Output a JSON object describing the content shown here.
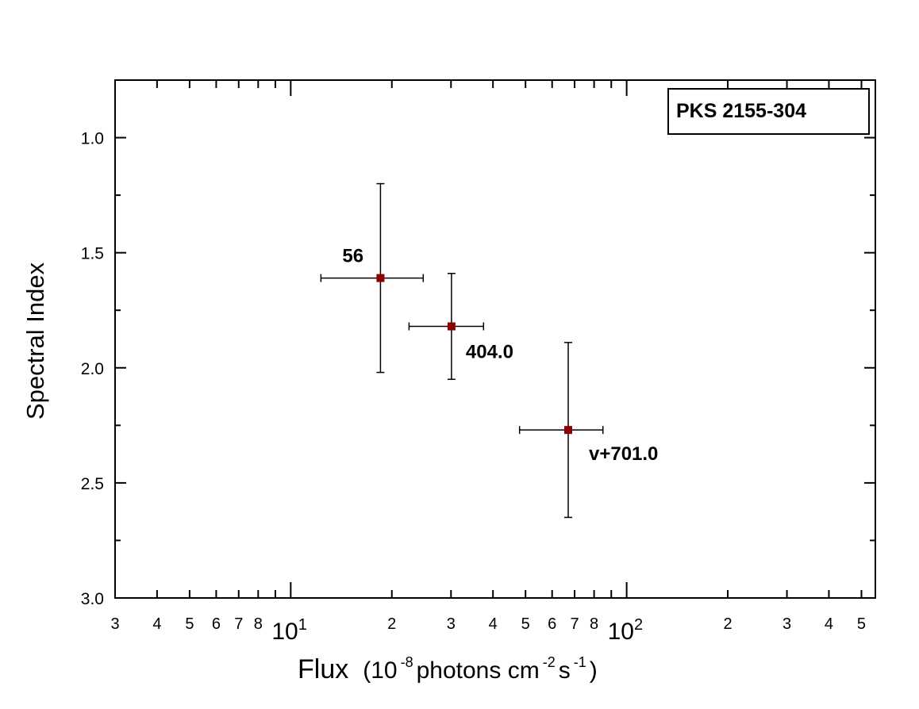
{
  "chart_data": {
    "type": "scatter",
    "title": "",
    "xlabel": {
      "main": "Flux",
      "paren_open": "(10",
      "exp1": "-8",
      "mid": " photons  cm",
      "exp2": "-2",
      "mid2": " s",
      "exp3": "-1",
      "paren_close": " )"
    },
    "ylabel": "Spectral Index",
    "x_scale": "log",
    "xlim": [
      3,
      5.5
    ],
    "ylim": [
      3.0,
      0.75
    ],
    "y_inverted": true,
    "grid": false,
    "legend": {
      "text": "PKS 2155-304",
      "position": "top-right"
    },
    "y_ticks": [
      "1.0",
      "1.5",
      "2.0",
      "2.5",
      "3.0"
    ],
    "x_tick_labels": {
      "minor": [
        {
          "v": 3,
          "t": "3"
        },
        {
          "v": 4,
          "t": "4"
        },
        {
          "v": 5,
          "t": "5"
        },
        {
          "v": 6,
          "t": "6"
        },
        {
          "v": 7,
          "t": "7"
        },
        {
          "v": 8,
          "t": "8"
        },
        {
          "v": 20,
          "t": "2"
        },
        {
          "v": 30,
          "t": "3"
        },
        {
          "v": 40,
          "t": "4"
        },
        {
          "v": 50,
          "t": "5"
        },
        {
          "v": 60,
          "t": "6"
        },
        {
          "v": 70,
          "t": "7"
        },
        {
          "v": 80,
          "t": "8"
        },
        {
          "v": 200,
          "t": "2"
        },
        {
          "v": 300,
          "t": "3"
        },
        {
          "v": 400,
          "t": "4"
        },
        {
          "v": 500,
          "t": "5"
        }
      ],
      "major": [
        {
          "v": 10,
          "base": "10",
          "exp": "1"
        },
        {
          "v": 100,
          "base": "10",
          "exp": "2"
        }
      ]
    },
    "points": [
      {
        "label": "56",
        "x": 18.5,
        "y": 1.61,
        "xerr": [
          12.3,
          24.8
        ],
        "yerr": [
          1.2,
          2.02
        ]
      },
      {
        "label": "404.0",
        "x": 30.1,
        "y": 1.82,
        "xerr": [
          22.5,
          37.5
        ],
        "yerr": [
          1.59,
          2.05
        ]
      },
      {
        "label": "v+701.0",
        "x": 67.0,
        "y": 2.27,
        "xerr": [
          48.0,
          85.0
        ],
        "yerr": [
          1.89,
          2.65
        ]
      }
    ],
    "colors": {
      "marker": "#8b0000",
      "axes": "#000000"
    }
  }
}
